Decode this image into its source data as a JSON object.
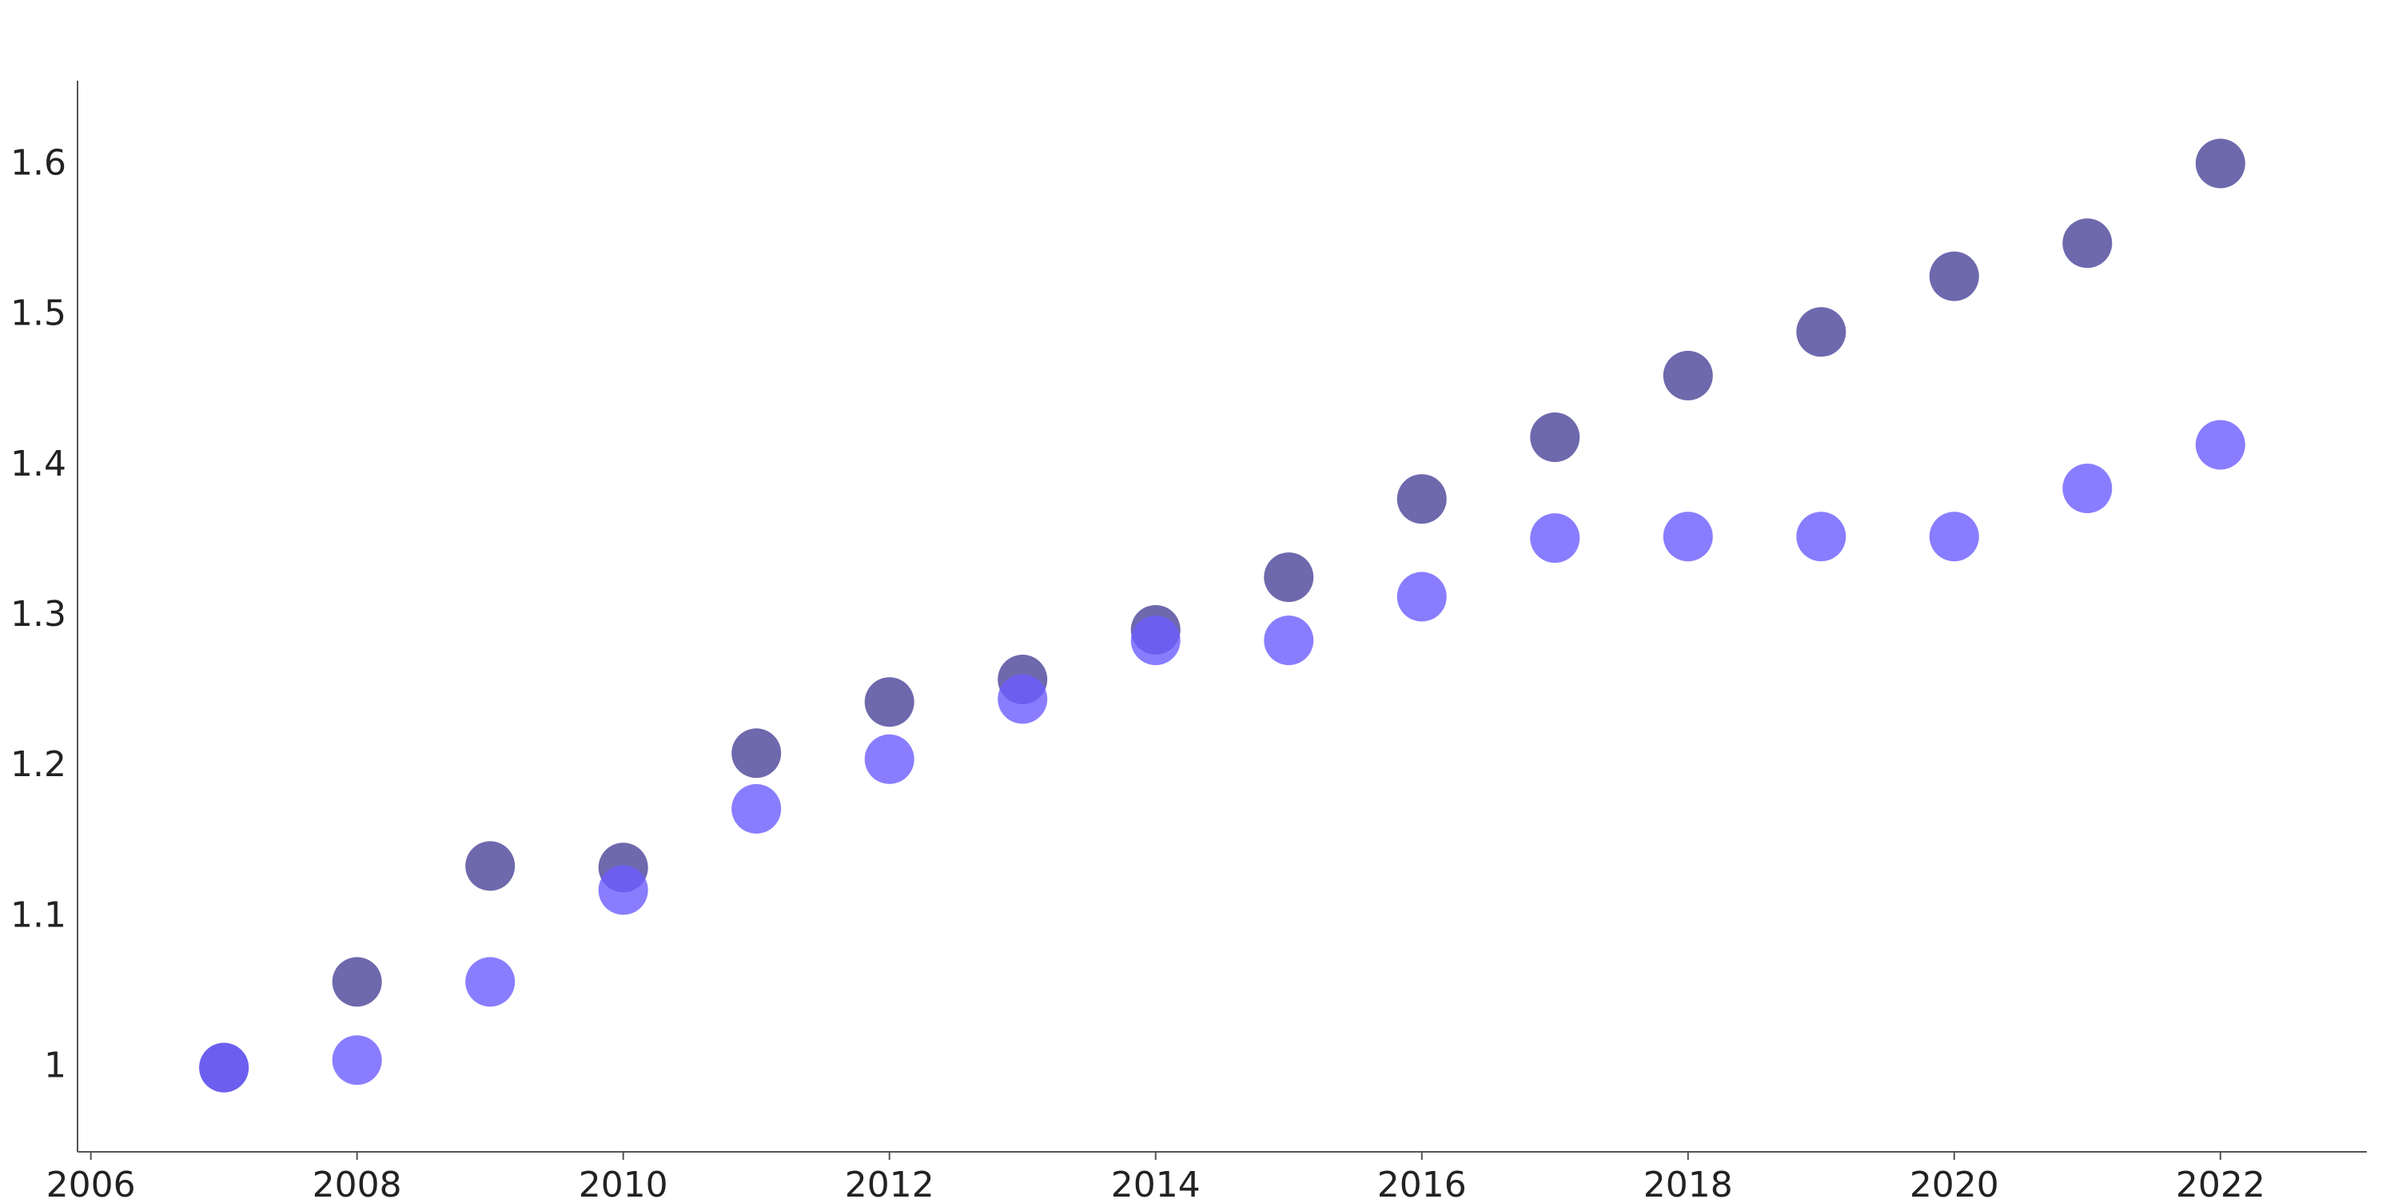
{
  "chart_data": {
    "type": "scatter",
    "x": [
      2007,
      2008,
      2009,
      2010,
      2011,
      2012,
      2013,
      2014,
      2015,
      2016,
      2017,
      2018,
      2019,
      2020,
      2021,
      2022
    ],
    "series": [
      {
        "color": "rgba(61,53,146,0.75)",
        "values": [
          1.0,
          1.057,
          1.134,
          1.133,
          1.209,
          1.243,
          1.258,
          1.291,
          1.326,
          1.378,
          1.419,
          1.46,
          1.489,
          1.526,
          1.548,
          1.601
        ]
      },
      {
        "color": "rgba(107,92,255,0.8)",
        "values": [
          1.0,
          1.005,
          1.057,
          1.118,
          1.172,
          1.205,
          1.245,
          1.284,
          1.284,
          1.313,
          1.352,
          1.353,
          1.353,
          1.353,
          1.385,
          1.414
        ]
      }
    ],
    "xlim": [
      2005.9,
      2023.1
    ],
    "xticks": [
      2006,
      2008,
      2010,
      2012,
      2014,
      2016,
      2018,
      2020,
      2022
    ],
    "ylim": [
      0.944,
      1.656
    ],
    "yticks": [
      1,
      1.1,
      1.2,
      1.3,
      1.4,
      1.5,
      1.6
    ],
    "grid": false
  }
}
